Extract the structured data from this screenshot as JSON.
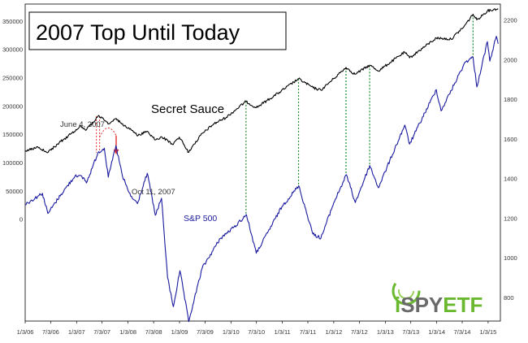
{
  "chart_data": {
    "type": "line",
    "title": "2007 Top Until Today",
    "x_ticks": [
      "1/3/06",
      "7/3/06",
      "1/3/07",
      "7/3/07",
      "1/3/08",
      "7/3/08",
      "1/3/09",
      "7/3/09",
      "1/3/10",
      "7/3/10",
      "1/3/11",
      "7/3/11",
      "1/3/12",
      "7/3/12",
      "1/3/13",
      "7/3/13",
      "1/3/14",
      "7/3/14",
      "1/3/15"
    ],
    "left_axis": {
      "ticks": [
        "0",
        "50000",
        "100000",
        "150000",
        "200000",
        "250000",
        "300000",
        "350000"
      ],
      "range": [
        -180000,
        380000
      ]
    },
    "right_axis": {
      "ticks": [
        "800",
        "1000",
        "1200",
        "1400",
        "1600",
        "1800",
        "2000",
        "2200"
      ],
      "range": [
        680,
        2280
      ]
    },
    "series": [
      {
        "name": "Secret Sauce",
        "axis": "left",
        "color": "#000000",
        "points": [
          [
            "2006-01-03",
            120000
          ],
          [
            "2006-04-01",
            128000
          ],
          [
            "2006-06-15",
            118000
          ],
          [
            "2006-09-01",
            135000
          ],
          [
            "2006-12-01",
            152000
          ],
          [
            "2007-02-01",
            165000
          ],
          [
            "2007-03-15",
            158000
          ],
          [
            "2007-06-04",
            182000
          ],
          [
            "2007-07-15",
            176000
          ],
          [
            "2007-08-15",
            168000
          ],
          [
            "2007-10-11",
            178000
          ],
          [
            "2007-12-01",
            165000
          ],
          [
            "2008-01-20",
            160000
          ],
          [
            "2008-03-15",
            148000
          ],
          [
            "2008-05-15",
            155000
          ],
          [
            "2008-07-15",
            140000
          ],
          [
            "2008-09-01",
            145000
          ],
          [
            "2008-11-20",
            132000
          ],
          [
            "2009-01-01",
            145000
          ],
          [
            "2009-03-09",
            118000
          ],
          [
            "2009-06-01",
            148000
          ],
          [
            "2009-09-01",
            168000
          ],
          [
            "2009-12-01",
            180000
          ],
          [
            "2010-04-20",
            208000
          ],
          [
            "2010-07-01",
            197000
          ],
          [
            "2010-12-01",
            222000
          ],
          [
            "2011-04-28",
            248000
          ],
          [
            "2011-08-10",
            232000
          ],
          [
            "2011-10-04",
            228000
          ],
          [
            "2012-01-01",
            248000
          ],
          [
            "2012-03-30",
            268000
          ],
          [
            "2012-06-01",
            256000
          ],
          [
            "2012-09-14",
            272000
          ],
          [
            "2012-11-15",
            262000
          ],
          [
            "2013-05-20",
            295000
          ],
          [
            "2013-06-24",
            285000
          ],
          [
            "2013-12-31",
            320000
          ],
          [
            "2014-04-15",
            318000
          ],
          [
            "2014-07-15",
            340000
          ],
          [
            "2014-09-18",
            362000
          ],
          [
            "2014-10-15",
            352000
          ],
          [
            "2014-12-29",
            368000
          ],
          [
            "2015-03-15",
            372000
          ]
        ]
      },
      {
        "name": "S&P 500",
        "axis": "right",
        "color": "#1a1aa0",
        "points": [
          [
            "2006-01-03",
            1268
          ],
          [
            "2006-05-05",
            1325
          ],
          [
            "2006-06-13",
            1223
          ],
          [
            "2006-09-15",
            1320
          ],
          [
            "2006-12-29",
            1418
          ],
          [
            "2007-02-27",
            1399
          ],
          [
            "2007-03-14",
            1377
          ],
          [
            "2007-06-04",
            1530
          ],
          [
            "2007-07-19",
            1553
          ],
          [
            "2007-08-16",
            1406
          ],
          [
            "2007-10-09",
            1565
          ],
          [
            "2007-11-26",
            1407
          ],
          [
            "2008-01-22",
            1310
          ],
          [
            "2008-03-10",
            1273
          ],
          [
            "2008-05-19",
            1426
          ],
          [
            "2008-07-15",
            1214
          ],
          [
            "2008-08-28",
            1300
          ],
          [
            "2008-10-10",
            899
          ],
          [
            "2008-11-20",
            752
          ],
          [
            "2009-01-06",
            934
          ],
          [
            "2009-03-09",
            677
          ],
          [
            "2009-06-12",
            946
          ],
          [
            "2009-10-19",
            1097
          ],
          [
            "2010-01-19",
            1150
          ],
          [
            "2010-04-23",
            1217
          ],
          [
            "2010-07-02",
            1022
          ],
          [
            "2010-12-31",
            1258
          ],
          [
            "2011-04-29",
            1363
          ],
          [
            "2011-08-08",
            1119
          ],
          [
            "2011-10-04",
            1099
          ],
          [
            "2012-01-03",
            1277
          ],
          [
            "2012-04-02",
            1419
          ],
          [
            "2012-06-04",
            1278
          ],
          [
            "2012-09-14",
            1465
          ],
          [
            "2012-11-15",
            1353
          ],
          [
            "2013-05-21",
            1669
          ],
          [
            "2013-06-24",
            1573
          ],
          [
            "2013-12-31",
            1848
          ],
          [
            "2014-02-03",
            1741
          ],
          [
            "2014-07-24",
            1987
          ],
          [
            "2014-09-18",
            2011
          ],
          [
            "2014-10-15",
            1862
          ],
          [
            "2014-12-29",
            2090
          ],
          [
            "2015-01-15",
            1992
          ],
          [
            "2015-03-02",
            2117
          ],
          [
            "2015-03-15",
            2080
          ]
        ]
      }
    ],
    "divergence_markers": [
      "2010-04-20",
      "2011-04-28",
      "2012-03-30",
      "2012-09-14",
      "2014-09-18"
    ],
    "annotations": [
      {
        "text": "June 4, 2007",
        "date": "2007-06-04"
      },
      {
        "text": "Oct 11, 2007",
        "date": "2007-10-11"
      }
    ],
    "series_labels": {
      "secret": "Secret Sauce",
      "spx": "S&P 500"
    },
    "grid": false
  },
  "branding": {
    "logo_text": "iSPYETF",
    "logo_i": "i",
    "logo_spy": "SPY",
    "logo_etf": "ETF"
  },
  "colors": {
    "secret": "#000000",
    "spx": "#1a1aa0",
    "markers": "#1e8a2e",
    "top_markers": "#e03030",
    "logo_green": "#6ab82e",
    "logo_grey": "#6a6a6a"
  }
}
